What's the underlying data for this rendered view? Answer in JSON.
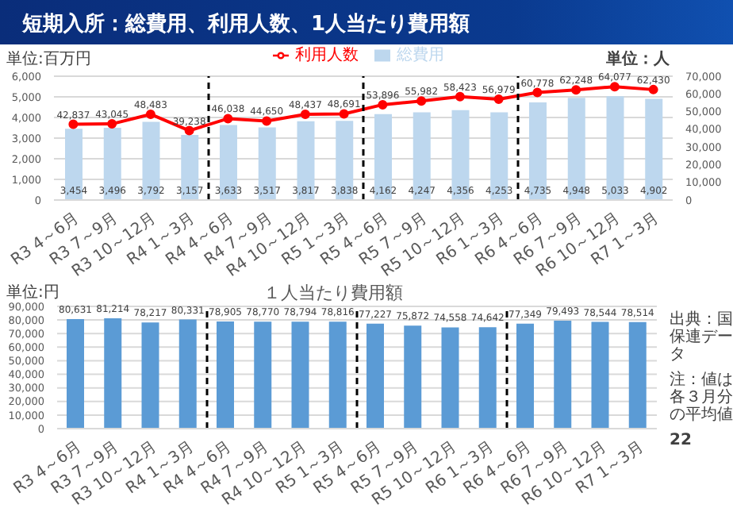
{
  "chart_data": [
    {
      "type": "bar",
      "title": "短期入所：総費用、利用人数、1人当たり費用額",
      "ylabel": "単位:百万円",
      "y2label": "単位：人",
      "categories": [
        "R3 4～6月",
        "R3 7～9月",
        "R3 10～12月",
        "R4 1～3月",
        "R4 4～6月",
        "R4 7～9月",
        "R4 10～12月",
        "R5 1～3月",
        "R5 4～6月",
        "R5 7～9月",
        "R5 10～12月",
        "R6 1～3月",
        "R6 4～6月",
        "R6 7～9月",
        "R6 10～12月",
        "R7 1～3月"
      ],
      "series": [
        {
          "name": "総費用",
          "color": "#bdd7ee",
          "values": [
            3454,
            3496,
            3792,
            3157,
            3633,
            3517,
            3817,
            3838,
            4162,
            4247,
            4356,
            4253,
            4735,
            4948,
            5033,
            4902
          ],
          "value_labels": [
            "3,454",
            "3,496",
            "3,792",
            "3,157",
            "3,633",
            "3,517",
            "3,817",
            "3,838",
            "4,162",
            "4,247",
            "4,356",
            "4,253",
            "4,735",
            "4,948",
            "5,033",
            "4,902"
          ]
        },
        {
          "name": "利用人数",
          "type": "line",
          "axis": "y2",
          "color": "#ff0000",
          "values": [
            42837,
            43045,
            48483,
            39238,
            46038,
            44650,
            48437,
            48691,
            53896,
            55982,
            58423,
            56979,
            60778,
            62248,
            64077,
            62430
          ],
          "value_labels": [
            "42,837",
            "43,045",
            "48,483",
            "39,238",
            "46,038",
            "44,650",
            "48,437",
            "48,691",
            "53,896",
            "55,982",
            "58,423",
            "56,979",
            "60,778",
            "62,248",
            "64,077",
            "62,430"
          ]
        }
      ],
      "ylim": [
        0,
        6000
      ],
      "yticks": [
        {
          "value": 0,
          "label": "0"
        },
        {
          "value": 1000,
          "label": "1,000"
        },
        {
          "value": 2000,
          "label": "2,000"
        },
        {
          "value": 3000,
          "label": "3,000"
        },
        {
          "value": 4000,
          "label": "4,000"
        },
        {
          "value": 5000,
          "label": "5,000"
        },
        {
          "value": 6000,
          "label": "6,000"
        }
      ],
      "y2lim": [
        0,
        70000
      ],
      "y2ticks": [
        {
          "value": 0,
          "label": "0"
        },
        {
          "value": 10000,
          "label": "10,000"
        },
        {
          "value": 20000,
          "label": "20,000"
        },
        {
          "value": 30000,
          "label": "30,000"
        },
        {
          "value": 40000,
          "label": "40,000"
        },
        {
          "value": 50000,
          "label": "50,000"
        },
        {
          "value": 60000,
          "label": "60,000"
        },
        {
          "value": 70000,
          "label": "70,000"
        }
      ],
      "grid": "y",
      "legend": "top",
      "marker": "circle"
    },
    {
      "type": "bar",
      "title": "１人当たり費用額",
      "ylabel": "単位:円",
      "categories": [
        "R3 4～6月",
        "R3 7～9月",
        "R3 10～12月",
        "R4 1～3月",
        "R4 4～6月",
        "R4 7～9月",
        "R4 10～12月",
        "R5 1～3月",
        "R5 4～6月",
        "R5 7～9月",
        "R5 10～12月",
        "R6 1～3月",
        "R6 4～6月",
        "R6 7～9月",
        "R6 10～12月",
        "R7 1～3月"
      ],
      "series": [
        {
          "color": "#5b9bd5",
          "values": [
            80631,
            81214,
            78217,
            80331,
            78905,
            78770,
            78794,
            78816,
            77227,
            75872,
            74558,
            74642,
            77349,
            79493,
            78544,
            78514
          ],
          "value_labels": [
            "80,631",
            "81,214",
            "78,217",
            "80,331",
            "78,905",
            "78,770",
            "78,794",
            "78,816",
            "77,227",
            "75,872",
            "74,558",
            "74,642",
            "77,349",
            "79,493",
            "78,544",
            "78,514"
          ]
        }
      ],
      "ylim": [
        0,
        90000
      ],
      "yticks": [
        {
          "value": 0,
          "label": "0"
        },
        {
          "value": 10000,
          "label": "10,000"
        },
        {
          "value": 20000,
          "label": "20,000"
        },
        {
          "value": 30000,
          "label": "30,000"
        },
        {
          "value": 40000,
          "label": "40,000"
        },
        {
          "value": 50000,
          "label": "50,000"
        },
        {
          "value": 60000,
          "label": "60,000"
        },
        {
          "value": 70000,
          "label": "70,000"
        },
        {
          "value": 80000,
          "label": "80,000"
        },
        {
          "value": 90000,
          "label": "90,000"
        }
      ],
      "grid": "y",
      "annotations": [
        "出典：国保連データ",
        "注：値は各３月分の平均値",
        "22"
      ]
    }
  ]
}
